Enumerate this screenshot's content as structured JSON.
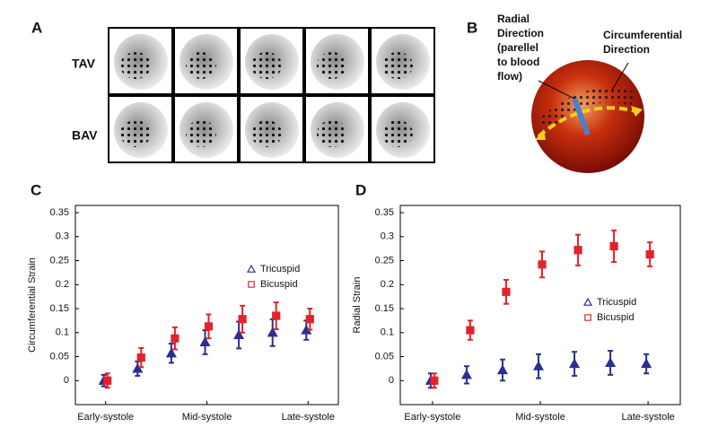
{
  "panel_a": {
    "label": "A",
    "rows": [
      "TAV",
      "BAV"
    ]
  },
  "panel_b": {
    "label": "B",
    "radial_label": [
      "Radial",
      "Direction",
      "(parellel",
      "to blood",
      "flow)"
    ],
    "circumferential_label": [
      "Circumferential",
      "Direction"
    ]
  },
  "chart_data": [
    {
      "type": "errorbar",
      "label": "C",
      "y_label": "Circumferential Strain",
      "categories": [
        "Early-systole",
        null,
        null,
        "Mid-systole",
        null,
        null,
        "Late-systole"
      ],
      "ylim": [
        -0.05,
        0.365
      ],
      "yticks": [
        0,
        0.05,
        0.1,
        0.15,
        0.2,
        0.25,
        0.3,
        0.35
      ],
      "series": [
        {
          "name": "Tricuspid",
          "color": "#2b2f8f",
          "marker": "triangle",
          "values": [
            0.0,
            0.025,
            0.057,
            0.08,
            0.095,
            0.1,
            0.105
          ],
          "errors": [
            0.012,
            0.015,
            0.02,
            0.025,
            0.028,
            0.028,
            0.02
          ]
        },
        {
          "name": "Bicuspid",
          "color": "#e3222b",
          "marker": "square",
          "values": [
            0.0,
            0.048,
            0.088,
            0.113,
            0.128,
            0.135,
            0.128
          ],
          "errors": [
            0.015,
            0.02,
            0.023,
            0.025,
            0.028,
            0.028,
            0.022
          ]
        }
      ],
      "legend": "right"
    },
    {
      "type": "errorbar",
      "label": "D",
      "y_label": "Radial Strain",
      "categories": [
        "Early-systole",
        null,
        null,
        "Mid-systole",
        null,
        null,
        "Late-systole"
      ],
      "ylim": [
        -0.05,
        0.365
      ],
      "yticks": [
        0,
        0.05,
        0.1,
        0.15,
        0.2,
        0.25,
        0.3,
        0.35
      ],
      "series": [
        {
          "name": "Tricuspid",
          "color": "#2b2f8f",
          "marker": "triangle",
          "values": [
            0.0,
            0.012,
            0.022,
            0.03,
            0.035,
            0.037,
            0.035
          ],
          "errors": [
            0.015,
            0.018,
            0.022,
            0.025,
            0.025,
            0.025,
            0.02
          ]
        },
        {
          "name": "Bicuspid",
          "color": "#e3222b",
          "marker": "square",
          "values": [
            0.0,
            0.105,
            0.185,
            0.242,
            0.272,
            0.28,
            0.263
          ],
          "errors": [
            0.015,
            0.02,
            0.025,
            0.027,
            0.032,
            0.033,
            0.025
          ]
        }
      ],
      "legend": "right"
    }
  ]
}
